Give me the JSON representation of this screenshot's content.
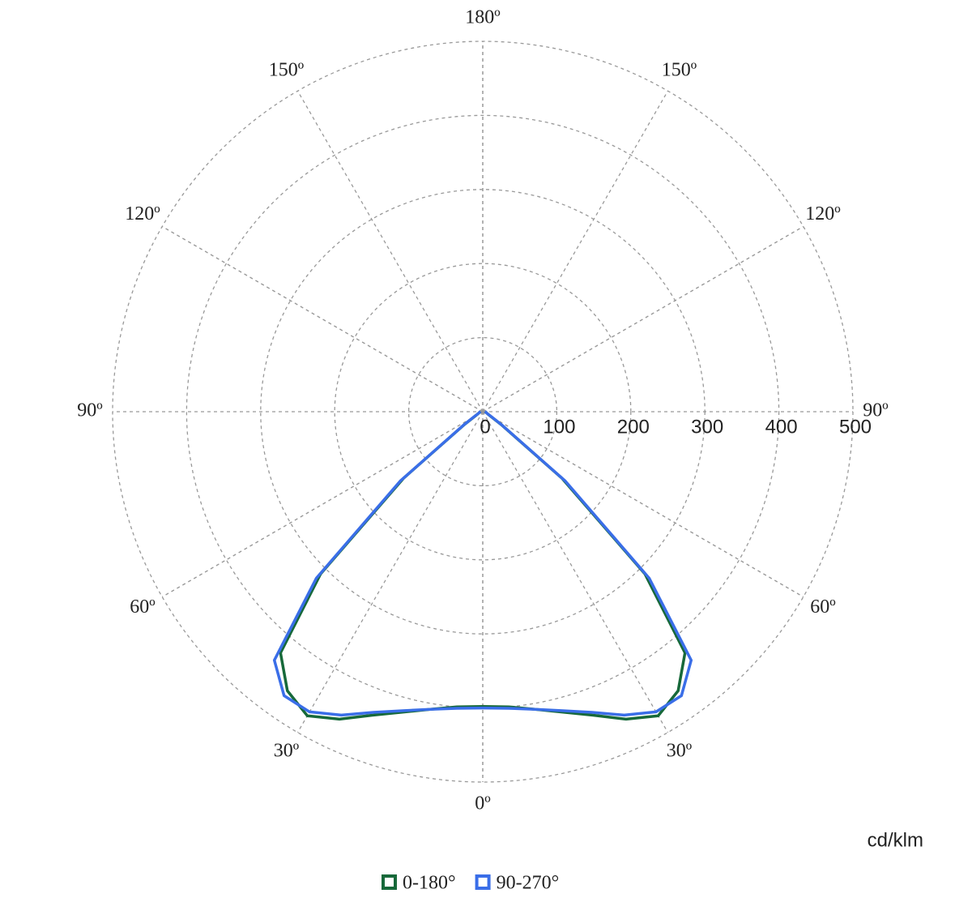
{
  "chart_data": {
    "type": "polar",
    "unit_label": "cd/klm",
    "angles": [
      0,
      5,
      10,
      15,
      20,
      25,
      30,
      35,
      40,
      45,
      50,
      55,
      60,
      65,
      70,
      75,
      80,
      85,
      90
    ],
    "series": [
      {
        "name": "0-180°",
        "color": "#17693a",
        "values": [
          398,
          400,
          408,
          420,
          436,
          458,
          474,
          460,
          425,
          310,
          140,
          30,
          12,
          8,
          6,
          5,
          4,
          4,
          3
        ]
      },
      {
        "name": "90-270°",
        "color": "#3a6ee8",
        "values": [
          400,
          402,
          408,
          418,
          432,
          452,
          468,
          468,
          438,
          318,
          145,
          32,
          13,
          8,
          6,
          5,
          4,
          4,
          3
        ]
      }
    ],
    "rlim": [
      0,
      500
    ],
    "rticks": [
      0,
      100,
      200,
      300,
      400,
      500
    ],
    "angle_ticks": [
      {
        "value": 0,
        "label": "0º"
      },
      {
        "value": 30,
        "label": "30º"
      },
      {
        "value": 60,
        "label": "60º"
      },
      {
        "value": 90,
        "label": "90º"
      },
      {
        "value": 120,
        "label": "120º"
      },
      {
        "value": 150,
        "label": "150º"
      },
      {
        "value": 180,
        "label": "180º"
      }
    ],
    "grid": true
  }
}
